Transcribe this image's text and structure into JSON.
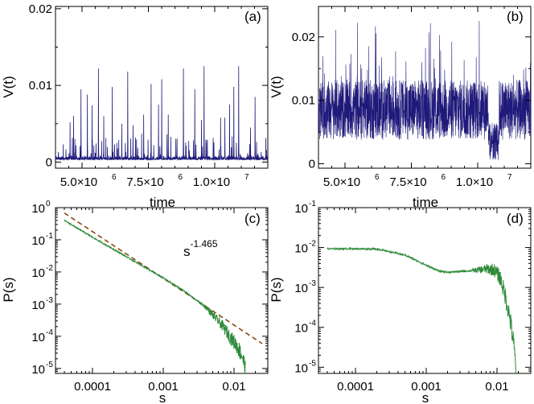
{
  "chart_data": [
    {
      "panel": "(a)",
      "type": "line",
      "xlabel": "time",
      "ylabel": "V(t)",
      "xticks": [
        5000000,
        7500000,
        10000000
      ],
      "xtick_mantissa": [
        "5.0×10",
        "7.5×10",
        "1.0×10"
      ],
      "xtick_exp": [
        "6",
        "6",
        "7"
      ],
      "xlim": [
        4000000,
        12000000
      ],
      "yticks": [
        0,
        0.01,
        0.02
      ],
      "ytick_labels": [
        "0",
        "0.01",
        "0.02"
      ],
      "ylim": [
        -0.0008,
        0.0203
      ],
      "color": "#1f1a7a",
      "baseline": 0.0003,
      "noise": 0.0006,
      "events_per_unit": 3e-06,
      "spike_peak": 0.014,
      "spikes": [
        [
          4550000,
          0.0052
        ],
        [
          4680000,
          0.006
        ],
        [
          4960000,
          0.0095
        ],
        [
          5200000,
          0.0088
        ],
        [
          5380000,
          0.0074
        ],
        [
          5620000,
          0.0122
        ],
        [
          5820000,
          0.006
        ],
        [
          6140000,
          0.0098
        ],
        [
          6500000,
          0.005
        ],
        [
          6720000,
          0.0118
        ],
        [
          6920000,
          0.0048
        ],
        [
          7320000,
          0.0062
        ],
        [
          7600000,
          0.0102
        ],
        [
          7880000,
          0.0075
        ],
        [
          8000000,
          0.0108
        ],
        [
          8250000,
          0.0062
        ],
        [
          8820000,
          0.0122
        ],
        [
          9250000,
          0.0095
        ],
        [
          9500000,
          0.0055
        ],
        [
          9600000,
          0.0125
        ],
        [
          10220000,
          0.0058
        ],
        [
          10380000,
          0.0058
        ],
        [
          10560000,
          0.0075
        ],
        [
          10720000,
          0.0098
        ],
        [
          10900000,
          0.0125
        ],
        [
          11350000,
          0.0045
        ],
        [
          11520000,
          0.0085
        ]
      ]
    },
    {
      "panel": "(b)",
      "type": "line",
      "xlabel": "time",
      "ylabel": "V(t)",
      "xticks": [
        5000000,
        7500000,
        10000000
      ],
      "xtick_mantissa": [
        "5.0×10",
        "7.5×10",
        "1.0×10"
      ],
      "xtick_exp": [
        "6",
        "6",
        "7"
      ],
      "xlim": [
        4000000,
        12000000
      ],
      "yticks": [
        0,
        0.01,
        0.02
      ],
      "ytick_labels": [
        "0",
        "0.01",
        "0.02"
      ],
      "ylim": [
        -0.0007,
        0.0248
      ],
      "color": "#1f1a7a",
      "mean": 0.0085,
      "spread": 0.0095,
      "dip": [
        10400000,
        10800000,
        0.0005
      ]
    },
    {
      "panel": "(c)",
      "type": "line",
      "xlabel": "s",
      "ylabel": "P(s)",
      "xscale": "log",
      "yscale": "log",
      "xlim": [
        3e-05,
        0.03
      ],
      "ylim": [
        7e-06,
        1.0
      ],
      "xticks": [
        0.0001,
        0.001,
        0.01
      ],
      "xtick_labels": [
        "0.0001",
        "0.001",
        "0.01"
      ],
      "yticks": [
        1e-05,
        0.0001,
        0.001,
        0.01,
        0.1,
        1
      ],
      "ytick_exp": [
        "-5",
        "-4",
        "-3",
        "-2",
        "-1",
        "0"
      ],
      "color": "#2e8b3a",
      "series_points": [
        [
          4e-05,
          0.4
        ],
        [
          0.0001,
          0.12
        ],
        [
          0.0003,
          0.03
        ],
        [
          0.001,
          0.0065
        ],
        [
          0.002,
          0.0025
        ],
        [
          0.004,
          0.0008
        ],
        [
          0.007,
          0.0002
        ],
        [
          0.009,
          9e-05
        ],
        [
          0.011,
          5e-05
        ],
        [
          0.013,
          2.5e-05
        ],
        [
          0.0145,
          1e-05
        ]
      ],
      "fit_line": {
        "color": "#8b4513",
        "style": "dashed",
        "exponent": -1.465,
        "label": "s",
        "label_exp": "-1.465",
        "from": [
          4e-05,
          0.68
        ],
        "to": [
          0.025,
          5.9e-05
        ]
      }
    },
    {
      "panel": "(d)",
      "type": "line",
      "xlabel": "s",
      "ylabel": "P(s)",
      "xscale": "log",
      "yscale": "log",
      "xlim": [
        3e-05,
        0.03
      ],
      "ylim": [
        7e-06,
        0.1
      ],
      "xticks": [
        0.0001,
        0.001,
        0.01
      ],
      "xtick_labels": [
        "0.0001",
        "0.001",
        "0.01"
      ],
      "yticks": [
        1e-05,
        0.0001,
        0.001,
        0.01,
        0.1
      ],
      "ytick_exp": [
        "-5",
        "-4",
        "-3",
        "-2",
        "-1"
      ],
      "color": "#2e8b3a",
      "series_points": [
        [
          4e-05,
          0.0093
        ],
        [
          0.0001,
          0.0093
        ],
        [
          0.0002,
          0.0092
        ],
        [
          0.0005,
          0.0065
        ],
        [
          0.001,
          0.0036
        ],
        [
          0.0015,
          0.0026
        ],
        [
          0.002,
          0.0024
        ],
        [
          0.004,
          0.0026
        ],
        [
          0.007,
          0.0029
        ],
        [
          0.009,
          0.0028
        ],
        [
          0.011,
          0.0018
        ],
        [
          0.013,
          0.00065
        ],
        [
          0.015,
          0.0002
        ],
        [
          0.017,
          4.5e-05
        ],
        [
          0.0185,
          1e-05
        ]
      ]
    }
  ]
}
